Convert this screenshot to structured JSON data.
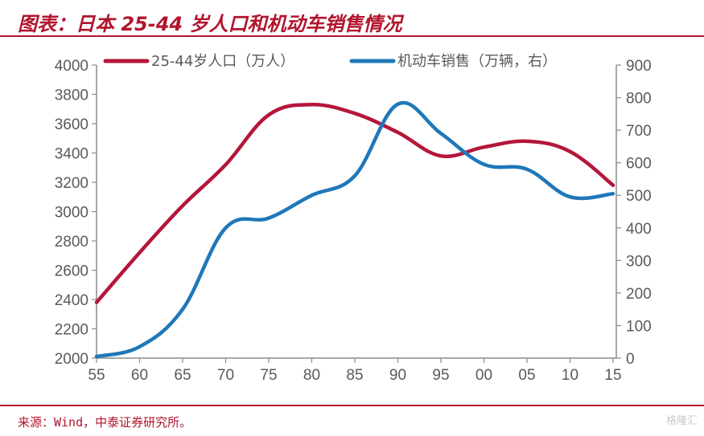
{
  "title": "图表：日本 25-44 岁人口和机动车销售情况",
  "source": "来源：Wind，中泰证券研究所。",
  "watermark": "格隆汇",
  "colors": {
    "brand": "#b1152d",
    "series1": "#b5163a",
    "series2": "#1f78b9",
    "axis": "#8c8c8c",
    "text": "#595959"
  },
  "chart_data": {
    "type": "line",
    "legend_position": "top",
    "grid": false,
    "x": [
      "55",
      "60",
      "65",
      "70",
      "75",
      "80",
      "85",
      "90",
      "95",
      "00",
      "05",
      "10",
      "15"
    ],
    "y_left_ticks": [
      "2000",
      "2200",
      "2400",
      "2600",
      "2800",
      "3000",
      "3200",
      "3400",
      "3600",
      "3800",
      "4000"
    ],
    "y_right_ticks": [
      "0",
      "100",
      "200",
      "300",
      "400",
      "500",
      "600",
      "700",
      "800",
      "900"
    ],
    "ylim_left": [
      2000,
      4000
    ],
    "ylim_right": [
      0,
      900
    ],
    "series": [
      {
        "name": "25-44岁人口（万人）",
        "axis": "left",
        "color": "#b5163a",
        "values": [
          2380,
          2720,
          3040,
          3320,
          3660,
          3730,
          3670,
          3540,
          3380,
          3440,
          3480,
          3410,
          3180
        ]
      },
      {
        "name": "机动车销售（万辆，右）",
        "axis": "right",
        "color": "#1f78b9",
        "values": [
          5,
          35,
          150,
          400,
          430,
          500,
          560,
          780,
          690,
          595,
          580,
          495,
          505
        ]
      }
    ]
  }
}
